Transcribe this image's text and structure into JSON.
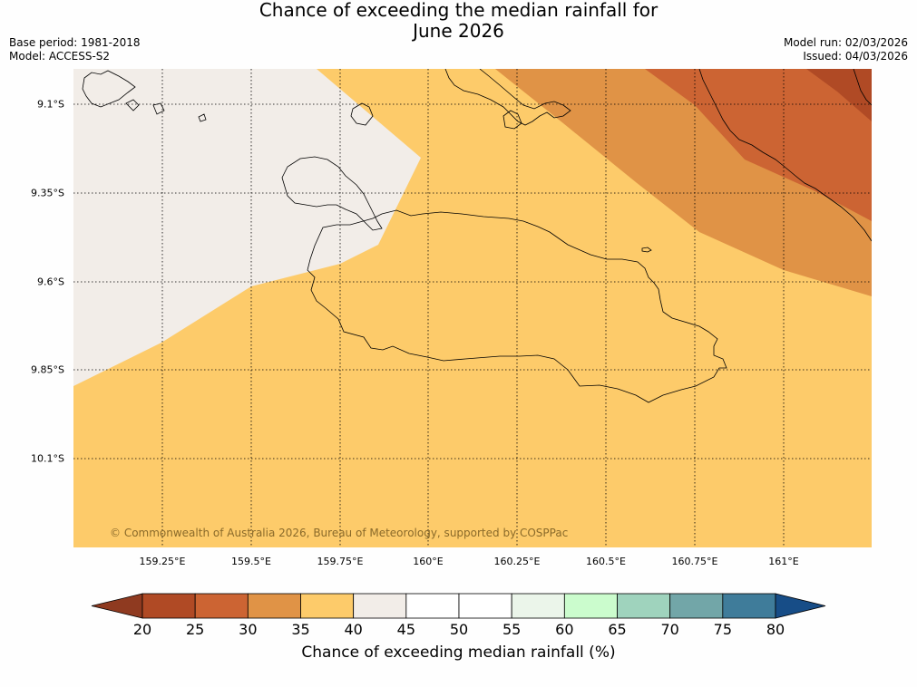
{
  "title": {
    "line1": "Chance of exceeding the median rainfall for",
    "line2": "June 2026"
  },
  "meta_left": {
    "base_period": "Base period: 1981-2018",
    "model": "Model: ACCESS-S2"
  },
  "meta_right": {
    "model_run": "Model run: 02/03/2026",
    "issued": "Issued: 04/03/2026"
  },
  "map": {
    "lat_labels": [
      "9.1°S",
      "9.35°S",
      "9.6°S",
      "9.85°S",
      "10.1°S"
    ],
    "lon_labels": [
      "159.25°E",
      "159.5°E",
      "159.75°E",
      "160°E",
      "160.25°E",
      "160.5°E",
      "160.75°E",
      "161°E"
    ],
    "copyright": "© Commonwealth of Australia 2026, Bureau of Meteorology, supported by COSPPac",
    "region_names": [
      "40-45",
      "35-40",
      "30-35",
      "25-30",
      "20-25"
    ]
  },
  "colorbar": {
    "ticks": [
      "20",
      "25",
      "30",
      "35",
      "40",
      "45",
      "50",
      "55",
      "60",
      "65",
      "70",
      "75",
      "80"
    ],
    "title": "Chance of exceeding median rainfall (%)",
    "colors": [
      "#b04a25",
      "#cc6433",
      "#e09346",
      "#fdcb6a",
      "#f2ede8",
      "#ffffff",
      "#ffffff",
      "#ebf5ea",
      "#cbfccd",
      "#9fd3bd",
      "#72a6a8",
      "#3f7c9a"
    ],
    "under_color": "#8f3a20",
    "over_color": "#174d87"
  }
}
